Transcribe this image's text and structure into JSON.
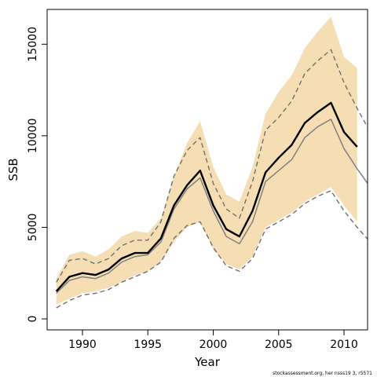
{
  "chart_data": {
    "type": "area",
    "title": "",
    "xlabel": "Year",
    "ylabel": "SSB",
    "xlim": [
      1987.3,
      2011.8
    ],
    "ylim": [
      -600,
      16900
    ],
    "x_ticks": [
      1990,
      1995,
      2000,
      2005,
      2010
    ],
    "y_ticks": [
      0,
      5000,
      10000,
      15000
    ],
    "grid": false,
    "legend": "none",
    "footer": "stockassessment.org, her nsss19 3, r5571",
    "colors": {
      "band": "#f5deb3",
      "estimate": "#000000",
      "alt_estimate": "#808080",
      "alt_bounds": "#707070",
      "frame": "#000000"
    },
    "band": {
      "name": "",
      "x": [
        1988,
        1989,
        1990,
        1991,
        1992,
        1993,
        1994,
        1995,
        1996,
        1997,
        1998,
        1999,
        2000,
        2001,
        2002,
        2003,
        2004,
        2005,
        2006,
        2007,
        2008,
        2009,
        2010,
        2011
      ],
      "upper": [
        2200,
        3500,
        3700,
        3400,
        3800,
        4500,
        4800,
        4700,
        5500,
        7800,
        9600,
        10800,
        8300,
        6800,
        6400,
        8300,
        11200,
        12400,
        13300,
        14800,
        15700,
        16500,
        14300,
        13700
      ],
      "lower": [
        800,
        1100,
        1400,
        1500,
        1700,
        2000,
        2400,
        2600,
        3100,
        4200,
        5000,
        5300,
        3800,
        3000,
        2700,
        3400,
        5000,
        5400,
        5800,
        6400,
        6800,
        7200,
        6200,
        5300
      ]
    },
    "series": [
      {
        "name": "",
        "style": "solid-thick",
        "x": [
          1988,
          1989,
          1990,
          1991,
          1992,
          1993,
          1994,
          1995,
          1996,
          1997,
          1998,
          1999,
          2000,
          2001,
          2002,
          2003,
          2004,
          2005,
          2006,
          2007,
          2008,
          2009,
          2010,
          2011
        ],
        "values": [
          1500,
          2300,
          2500,
          2400,
          2700,
          3300,
          3600,
          3600,
          4400,
          6200,
          7300,
          8100,
          6200,
          4900,
          4500,
          5900,
          8000,
          8800,
          9500,
          10700,
          11300,
          11800,
          10200,
          9400
        ]
      },
      {
        "name": "",
        "style": "solid-thin",
        "x": [
          1988,
          1989,
          1990,
          1991,
          1992,
          1993,
          1994,
          1995,
          1996,
          1997,
          1998,
          1999,
          2000,
          2001,
          2002,
          2003,
          2004,
          2005,
          2006,
          2007,
          2008,
          2009,
          2010,
          2011,
          2012
        ],
        "values": [
          1400,
          2100,
          2300,
          2200,
          2500,
          3100,
          3400,
          3500,
          4200,
          6000,
          7100,
          7700,
          5900,
          4500,
          4100,
          5300,
          7500,
          8100,
          8700,
          9900,
          10500,
          10900,
          9300,
          8200,
          7200
        ]
      },
      {
        "name": "",
        "style": "dashed",
        "x": [
          1988,
          1989,
          1990,
          1991,
          1992,
          1993,
          1994,
          1995,
          1996,
          1997,
          1998,
          1999,
          2000,
          2001,
          2002,
          2003,
          2004,
          2005,
          2006,
          2007,
          2008,
          2009,
          2010,
          2011,
          2012
        ],
        "values": [
          2000,
          3200,
          3300,
          3000,
          3300,
          4000,
          4300,
          4300,
          5300,
          7800,
          9200,
          9900,
          7400,
          6000,
          5500,
          7500,
          10300,
          11000,
          11900,
          13400,
          14100,
          14700,
          12900,
          11500,
          10200
        ]
      },
      {
        "name": "",
        "style": "dashed",
        "x": [
          1988,
          1989,
          1990,
          1991,
          1992,
          1993,
          1994,
          1995,
          1996,
          1997,
          1998,
          1999,
          2000,
          2001,
          2002,
          2003,
          2004,
          2005,
          2006,
          2007,
          2008,
          2009,
          2010,
          2011,
          2012
        ],
        "values": [
          600,
          1000,
          1300,
          1400,
          1600,
          2000,
          2300,
          2600,
          3100,
          4400,
          5100,
          5300,
          3900,
          2900,
          2600,
          3300,
          4900,
          5300,
          5700,
          6300,
          6700,
          7000,
          5900,
          5000,
          4200
        ]
      }
    ]
  }
}
